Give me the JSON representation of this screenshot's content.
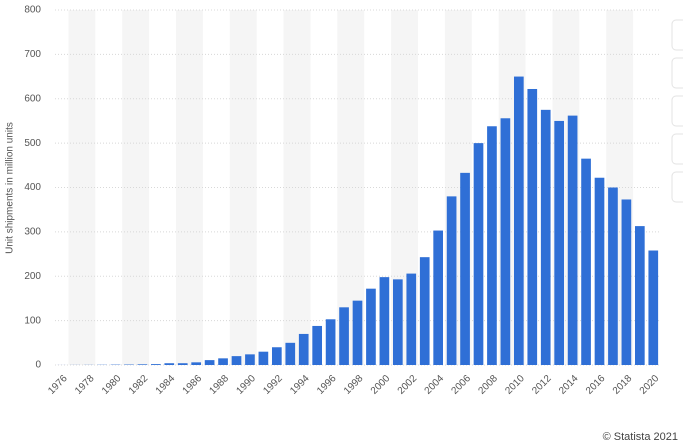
{
  "chart_data": {
    "type": "bar",
    "y_label": "Unit shipments in million units",
    "source": "© Statista 2021",
    "categories": [
      "1976",
      null,
      "1978",
      null,
      "1980",
      null,
      "1982",
      null,
      "1984",
      null,
      "1986",
      null,
      "1988",
      null,
      "1990",
      null,
      "1992",
      null,
      "1994",
      null,
      "1996",
      null,
      "1998",
      null,
      "2000",
      null,
      "2002",
      null,
      "2004",
      null,
      "2006",
      null,
      "2008",
      null,
      "2010",
      null,
      "2012",
      null,
      "2014",
      null,
      "2016",
      null,
      "2018",
      null,
      "2020"
    ],
    "values": [
      0.1,
      0.2,
      0.3,
      0.5,
      0.8,
      1,
      1.5,
      2,
      4,
      4,
      6,
      11,
      15,
      20,
      24,
      30,
      40,
      50,
      70,
      88,
      103,
      130,
      145,
      172,
      198,
      193,
      206,
      243,
      303,
      380,
      433,
      500,
      538,
      556,
      650,
      622,
      575,
      550,
      562,
      465,
      422,
      400,
      373,
      313,
      258
    ],
    "color": "#2f6fd6",
    "ylim": [
      0,
      800
    ],
    "yticks": [
      0,
      100,
      200,
      300,
      400,
      500,
      600,
      700,
      800
    ],
    "grid": true
  }
}
